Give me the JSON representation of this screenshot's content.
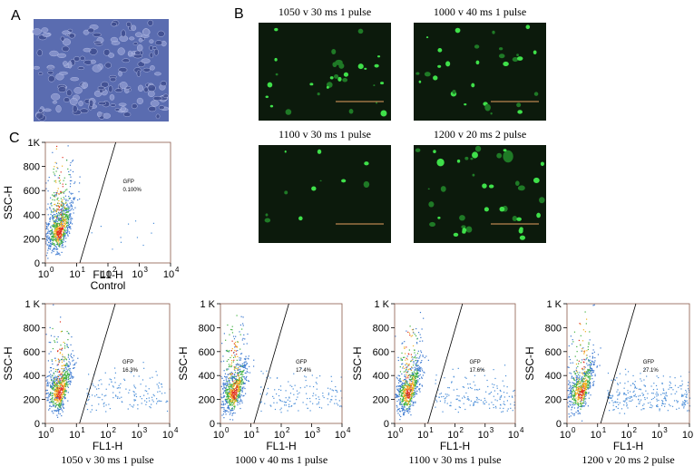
{
  "panels": {
    "A": {
      "label": "A"
    },
    "B": {
      "label": "B",
      "images": [
        {
          "caption": "1050 v  30 ms  1 pulse"
        },
        {
          "caption": "1000 v  40 ms  1 pulse"
        },
        {
          "caption": "1100 v  30 ms  1 pulse"
        },
        {
          "caption": "1200 v 20 ms 2 pulse"
        }
      ]
    },
    "C": {
      "label": "C",
      "plots": [
        {
          "ylabel": "SSC-H",
          "xlabel": "FL1-H",
          "caption": "Control",
          "gate_label": "GFP",
          "gate_value": "0.100%",
          "yticks": [
            "0",
            "200",
            "400",
            "600",
            "800",
            "1K"
          ],
          "xticks": [
            {
              "base": "10",
              "exp": "0"
            },
            {
              "base": "10",
              "exp": "1"
            },
            {
              "base": "10",
              "exp": "2"
            },
            {
              "base": "10",
              "exp": "3"
            },
            {
              "base": "10",
              "exp": "4"
            }
          ]
        },
        {
          "ylabel": "SSC-H",
          "xlabel": "FL1-H",
          "caption": "1050 v  30 ms  1 pulse",
          "gate_label": "GFP",
          "gate_value": "16.3%",
          "yticks": [
            "0",
            "200",
            "400",
            "600",
            "800",
            "1 K"
          ],
          "xticks": [
            {
              "base": "10",
              "exp": "0"
            },
            {
              "base": "10",
              "exp": "1"
            },
            {
              "base": "10",
              "exp": "2"
            },
            {
              "base": "10",
              "exp": "3"
            },
            {
              "base": "10",
              "exp": "4"
            }
          ]
        },
        {
          "ylabel": "SSC-H",
          "xlabel": "FL1-H",
          "caption": "1000 v  40 ms  1 pulse",
          "gate_label": "GFP",
          "gate_value": "17.4%",
          "yticks": [
            "0",
            "200",
            "400",
            "600",
            "800",
            "1 K"
          ],
          "xticks": [
            {
              "base": "10",
              "exp": "0"
            },
            {
              "base": "10",
              "exp": "1"
            },
            {
              "base": "10",
              "exp": "2"
            },
            {
              "base": "10",
              "exp": "3"
            },
            {
              "base": "10",
              "exp": "4"
            }
          ]
        },
        {
          "ylabel": "SSC-H",
          "xlabel": "FL1-H",
          "caption": "1100 v  30 ms  1 pulse",
          "gate_label": "GFP",
          "gate_value": "17.6%",
          "yticks": [
            "0",
            "200",
            "400",
            "600",
            "800",
            "1 K"
          ],
          "xticks": [
            {
              "base": "10",
              "exp": "0"
            },
            {
              "base": "10",
              "exp": "1"
            },
            {
              "base": "10",
              "exp": "2"
            },
            {
              "base": "10",
              "exp": "3"
            },
            {
              "base": "10",
              "exp": "4"
            }
          ]
        },
        {
          "ylabel": "SSC-H",
          "xlabel": "FL1-H",
          "caption": "1200 v  20 ms  2 pulse",
          "gate_label": "GFP",
          "gate_value": "27.1%",
          "yticks": [
            "0",
            "200",
            "400",
            "600",
            "800",
            "1 K"
          ],
          "xticks": [
            {
              "base": "10",
              "exp": "0"
            },
            {
              "base": "10",
              "exp": "1"
            },
            {
              "base": "10",
              "exp": "2"
            },
            {
              "base": "10",
              "exp": "3"
            },
            {
              "base": "10",
              "exp": "4"
            }
          ]
        }
      ]
    }
  }
}
